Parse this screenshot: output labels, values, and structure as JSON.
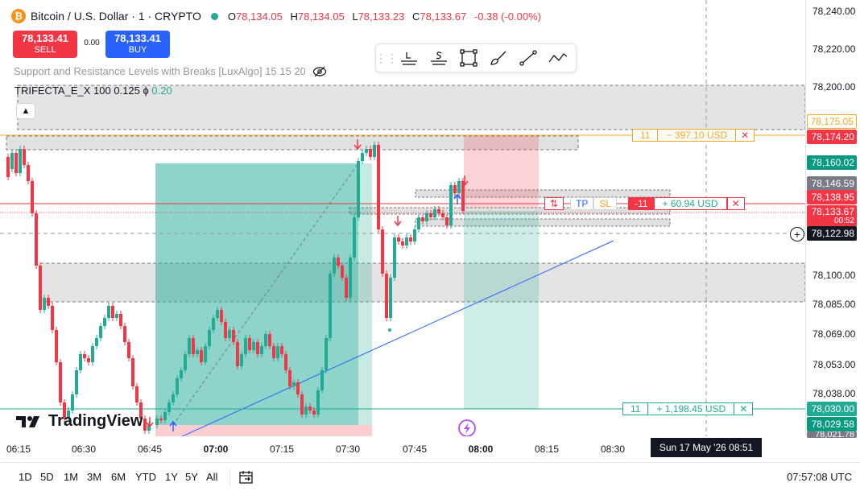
{
  "symbol": {
    "title": "Bitcoin / U.S. Dollar · 1 · CRYPTO",
    "open_label": "O",
    "open": "78,134.05",
    "high_label": "H",
    "high": "78,134.05",
    "low_label": "L",
    "low": "78,133.23",
    "close_label": "C",
    "close": "78,133.67",
    "change": "-0.38 (-0.00%)"
  },
  "trade": {
    "sell_price": "78,133.41",
    "sell_label": "SELL",
    "spread": "0.00",
    "buy_price": "78,133.41",
    "buy_label": "BUY"
  },
  "indicators": {
    "sr_label": "Support and Resistance Levels with Breaks [LuxAlgo] 15 15 20",
    "trifecta_label": "TRIFECTA_E_X",
    "trifecta_params": "100 0.125",
    "trifecta_symbol": "ϕ",
    "trifecta_value": "0.20"
  },
  "draw_tools": [
    "horizontal-line-label-icon",
    "horizontal-line-s-icon",
    "rectangle-icon",
    "brush-icon",
    "trend-line-icon",
    "polyline-icon"
  ],
  "orders": {
    "top": {
      "qty": "11",
      "pnl": "− 397.10 USD",
      "close": "✕"
    },
    "position": {
      "side_icon": "⇅",
      "tp": "TP",
      "sl": "SL",
      "qty": "-11",
      "pnl": "+ 60.94 USD",
      "close": "✕"
    },
    "bottom": {
      "qty": "11",
      "pnl": "+ 1,198.45 USD",
      "close": "✕"
    }
  },
  "price_axis": {
    "ticks": [
      "78,240.00",
      "78,220.00",
      "78,200.00",
      "78,100.00",
      "78,085.00",
      "78,069.00",
      "78,053.00",
      "78,038.00"
    ],
    "labels": {
      "p175": "78,175.05",
      "p174": "78,174.20",
      "p160": "78,160.02",
      "p146": "78,146.59",
      "p138": "78,138.95",
      "p133": "78,133.67",
      "p133_timer": "00:52",
      "p122": "78,122.98",
      "p030": "78,030.00",
      "p029": "78,029.58",
      "p021": "78,021.78"
    }
  },
  "time_axis": {
    "labels": [
      "06:15",
      "06:30",
      "06:45",
      "07:00",
      "07:15",
      "07:30",
      "07:45",
      "08:00",
      "08:15",
      "08:30"
    ],
    "crosshair": "Sun 17 May '26   08:51"
  },
  "bottom_bar": {
    "ranges": [
      "1D",
      "5D",
      "1M",
      "3M",
      "6M",
      "YTD",
      "1Y",
      "5Y",
      "All"
    ],
    "clock": "07:57:08 UTC"
  },
  "brand": {
    "name": "TradingView"
  },
  "colors": {
    "up": "#22ab94",
    "down": "#f23645",
    "accent": "#2962ff",
    "alert_orange": "#f5a623"
  }
}
